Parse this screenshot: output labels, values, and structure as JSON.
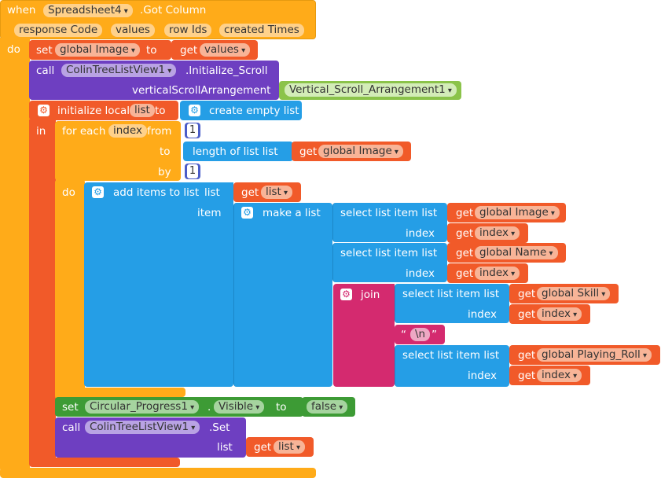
{
  "event": {
    "when": "when",
    "component": "Spreadsheet4",
    "event_name": ".Got Column",
    "params": [
      "response Code",
      "values",
      "row Ids",
      "created Times"
    ],
    "do": "do"
  },
  "set_global": {
    "set": "set",
    "var": "global Image",
    "to": "to",
    "get": "get",
    "value": "values"
  },
  "call_init": {
    "call": "call",
    "component": "ColinTreeListView1",
    "method": ".Initialize_Scroll",
    "param": "verticalScrollArrangement",
    "arg": "Vertical_Scroll_Arrangement1"
  },
  "init_local": {
    "label": "initialize local",
    "name": "list",
    "to": "to",
    "create": "create empty list",
    "in": "in"
  },
  "for_each": {
    "label": "for each",
    "var": "index",
    "from": "from",
    "from_val": "1",
    "to": "to",
    "length": "length of list  list",
    "get": "get",
    "length_var": "global Image",
    "by": "by",
    "by_val": "1",
    "do": "do"
  },
  "add_items": {
    "label": "add items to list",
    "list_label": "list",
    "get": "get",
    "list_var": "list",
    "item": "item",
    "make": "make a list"
  },
  "selects": {
    "select": "select list item  list",
    "index_label": "index",
    "get": "get",
    "index_var": "index",
    "image": "global Image",
    "name": "global Name",
    "skill": "global Skill",
    "roll": "global Playing_Roll"
  },
  "join": {
    "label": "join",
    "newline": "\\n",
    "open_q": "“",
    "close_q": "”"
  },
  "set_visible": {
    "set": "set",
    "component": "Circular_Progress1",
    "dot": ".",
    "prop": "Visible",
    "to": "to",
    "value": "false"
  },
  "call_set": {
    "call": "call",
    "component": "ColinTreeListView1",
    "method": ".Set",
    "list_label": "list",
    "get": "get",
    "var": "list"
  },
  "colors": {
    "event": "#ffab19",
    "event_field": "#ffd18a",
    "var": "#f15a29",
    "proc": "#6e3fc1",
    "loop": "#ffab19",
    "list": "#259ee6",
    "math": "#4a5cc8",
    "text": "#d42a6f",
    "logic": "#8bc34a",
    "component_green": "#3d9b35"
  }
}
